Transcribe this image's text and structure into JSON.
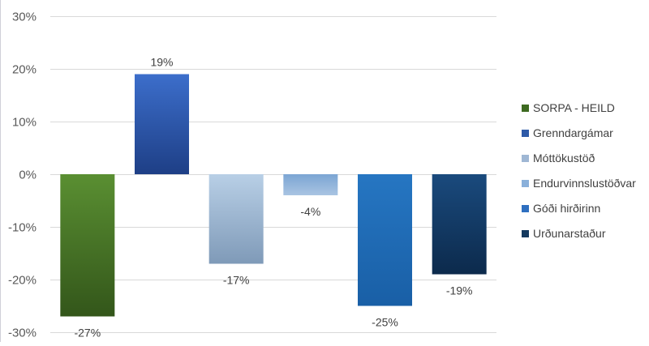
{
  "chart_data": {
    "type": "bar",
    "title": "",
    "xlabel": "",
    "ylabel": "",
    "ylim": [
      -30,
      30
    ],
    "yticks": [
      30,
      20,
      10,
      0,
      -10,
      -20,
      -30
    ],
    "ytick_labels": [
      "30%",
      "20%",
      "10%",
      "0%",
      "-10%",
      "-20%",
      "-30%"
    ],
    "grid": true,
    "legend_position": "right",
    "categories": [
      "SORPA - HEILD",
      "Grenndargámar",
      "Móttökustöð",
      "Endurvinnslustöðvar",
      "Góði hirðirinn",
      "Urðunarstaður"
    ],
    "values": [
      -27,
      19,
      -17,
      -4,
      -25,
      -19
    ],
    "data_labels": [
      "-27%",
      "19%",
      "-17%",
      "-4%",
      "-25%",
      "-19%"
    ],
    "colors": [
      [
        "#5a8f32",
        "#33561a"
      ],
      [
        "#3c6ecb",
        "#1e3f86"
      ],
      [
        "#b8cfe6",
        "#7f9ab8"
      ],
      [
        "#7ba5d3",
        "#a9c4e2"
      ],
      [
        "#2676c2",
        "#195fa6"
      ],
      [
        "#1a4a7d",
        "#0c2a4c"
      ]
    ],
    "legend_colors": [
      "#3d6a20",
      "#2e5aa8",
      "#9fb7d4",
      "#8ab0da",
      "#2e6fc0",
      "#14395f"
    ]
  }
}
